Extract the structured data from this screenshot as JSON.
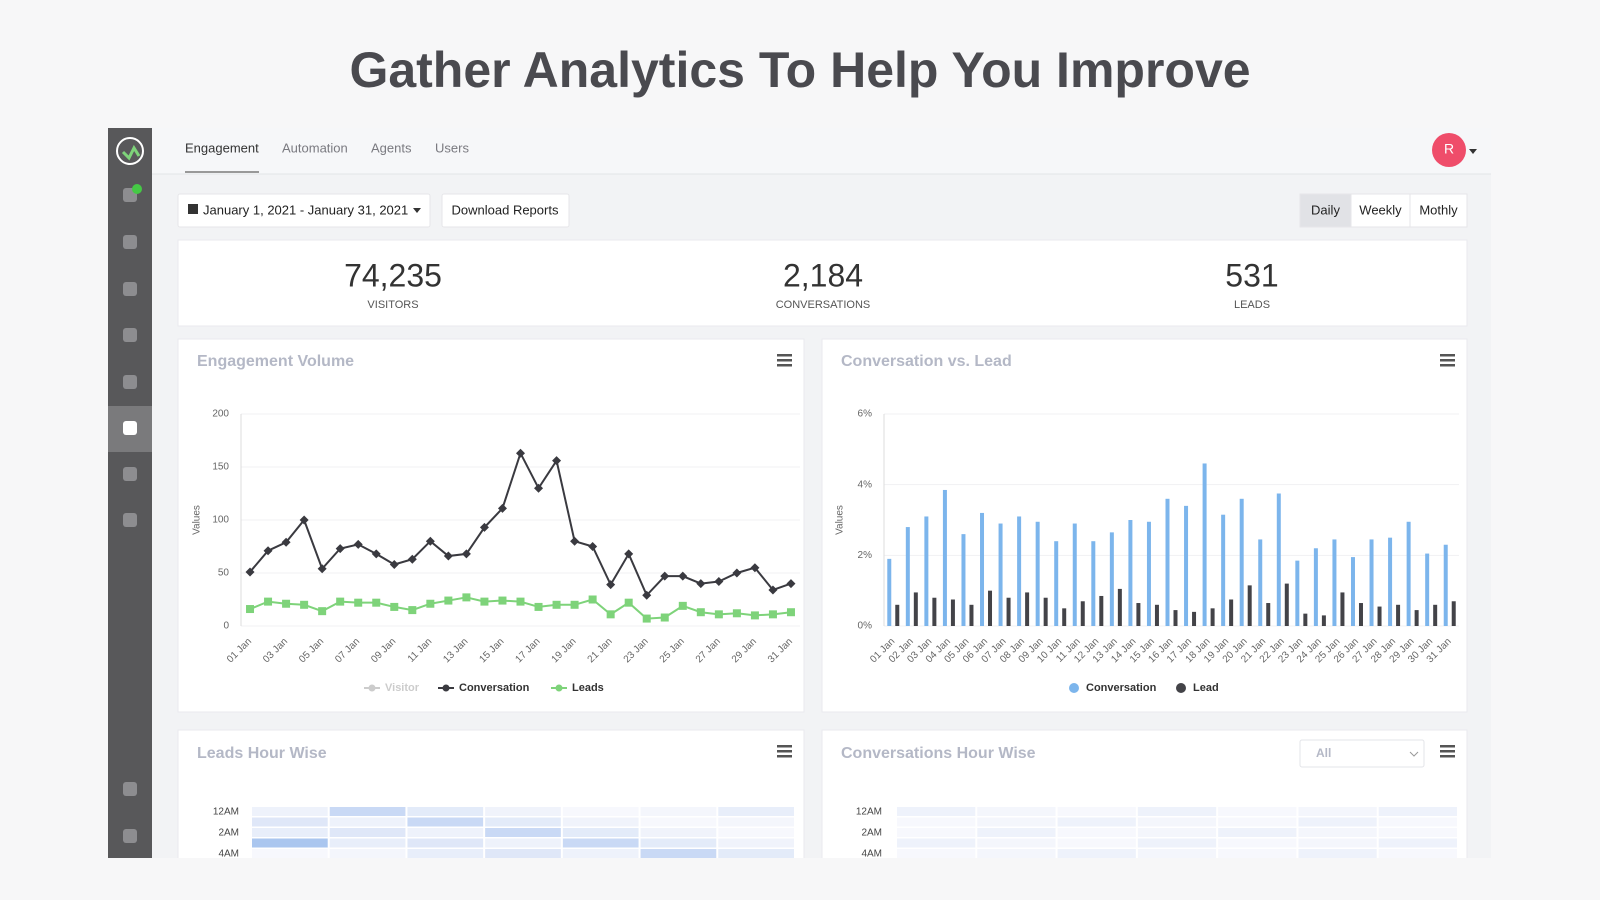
{
  "header": {
    "title": "Gather Analytics To Help You Improve"
  },
  "nav": {
    "tabs": [
      "Engagement",
      "Automation",
      "Agents",
      "Users"
    ],
    "user_initial": "R"
  },
  "toolbar": {
    "date_range": "January 1, 2021 - January 31, 2021",
    "download": "Download Reports",
    "periods": [
      "Daily",
      "Weekly",
      "Mothly"
    ]
  },
  "stats": [
    {
      "value": "74,235",
      "label": "VISITORS"
    },
    {
      "value": "2,184",
      "label": "CONVERSATIONS"
    },
    {
      "value": "531",
      "label": "LEADS"
    }
  ],
  "chart_data": [
    {
      "type": "line",
      "title": "Engagement Volume",
      "y_label": "Values",
      "categories": [
        "01 Jan",
        null,
        "03 Jan",
        null,
        "05 Jan",
        null,
        "07 Jan",
        null,
        "09 Jan",
        null,
        "11 Jan",
        null,
        "13 Jan",
        null,
        "15 Jan",
        null,
        "17 Jan",
        null,
        "19 Jan",
        null,
        "21 Jan",
        null,
        "23 Jan",
        null,
        "25 Jan",
        null,
        "27 Jan",
        null,
        "29 Jan",
        null,
        "31 Jan"
      ],
      "series": [
        {
          "name": "Visitor",
          "color": "#cccccc",
          "visible": false
        },
        {
          "name": "Conversation",
          "color": "#3a3a40",
          "values": [
            51,
            71,
            79,
            100,
            54,
            73,
            77,
            68,
            58,
            63,
            80,
            66,
            68,
            93,
            111,
            163,
            130,
            156,
            80,
            75,
            39,
            68,
            29,
            47,
            47,
            40,
            42,
            50,
            55,
            34,
            40
          ]
        },
        {
          "name": "Leads",
          "color": "#7ed37a",
          "values": [
            16,
            23,
            21,
            20,
            14,
            23,
            22,
            22,
            18,
            15,
            21,
            24,
            27,
            23,
            24,
            23,
            18,
            20,
            20,
            25,
            11,
            22,
            7,
            8,
            19,
            13,
            11,
            12,
            10,
            11,
            13
          ]
        }
      ],
      "ylim": [
        0,
        200
      ],
      "yticks": [
        0,
        50,
        100,
        150,
        200
      ],
      "grid": true
    },
    {
      "type": "bar",
      "title": "Conversation vs. Lead",
      "y_label": "Values",
      "categories": [
        "01 Jan",
        "02 Jan",
        "03 Jan",
        "04 Jan",
        "05 Jan",
        "06 Jan",
        "07 Jan",
        "08 Jan",
        "09 Jan",
        "10 Jan",
        "11 Jan",
        "12 Jan",
        "13 Jan",
        "14 Jan",
        "15 Jan",
        "16 Jan",
        "17 Jan",
        "18 Jan",
        "19 Jan",
        "20 Jan",
        "21 Jan",
        "22 Jan",
        "23 Jan",
        "24 Jan",
        "25 Jan",
        "26 Jan",
        "27 Jan",
        "28 Jan",
        "29 Jan",
        "30 Jan",
        "31 Jan"
      ],
      "series": [
        {
          "name": "Conversation",
          "color": "#7cb5ec",
          "values": [
            1.9,
            2.8,
            3.1,
            3.85,
            2.6,
            3.2,
            2.9,
            3.1,
            2.95,
            2.4,
            2.9,
            2.4,
            2.65,
            3.0,
            2.95,
            3.6,
            3.4,
            4.6,
            3.15,
            3.6,
            2.45,
            3.75,
            1.85,
            2.2,
            2.45,
            1.95,
            2.45,
            2.5,
            2.95,
            2.05,
            2.3
          ]
        },
        {
          "name": "Lead",
          "color": "#434348",
          "values": [
            0.6,
            0.95,
            0.8,
            0.75,
            0.6,
            1.0,
            0.8,
            0.95,
            0.8,
            0.5,
            0.7,
            0.85,
            1.05,
            0.65,
            0.6,
            0.45,
            0.4,
            0.5,
            0.75,
            1.15,
            0.65,
            1.2,
            0.35,
            0.3,
            0.95,
            0.65,
            0.55,
            0.6,
            0.45,
            0.6,
            0.7
          ]
        }
      ],
      "ylim": [
        0,
        6
      ],
      "yticks": [
        {
          "value": 0,
          "label": "0%"
        },
        {
          "value": 2,
          "label": "2%"
        },
        {
          "value": 4,
          "label": "4%"
        },
        {
          "value": 6,
          "label": "6%"
        }
      ],
      "grid": true
    }
  ],
  "heatmaps": [
    {
      "title": "Leads Hour Wise",
      "rows": [
        "12AM",
        "2AM",
        "4AM"
      ]
    },
    {
      "title": "Conversations Hour Wise",
      "filter": "All",
      "rows": [
        "12AM",
        "2AM",
        "4AM"
      ]
    }
  ]
}
